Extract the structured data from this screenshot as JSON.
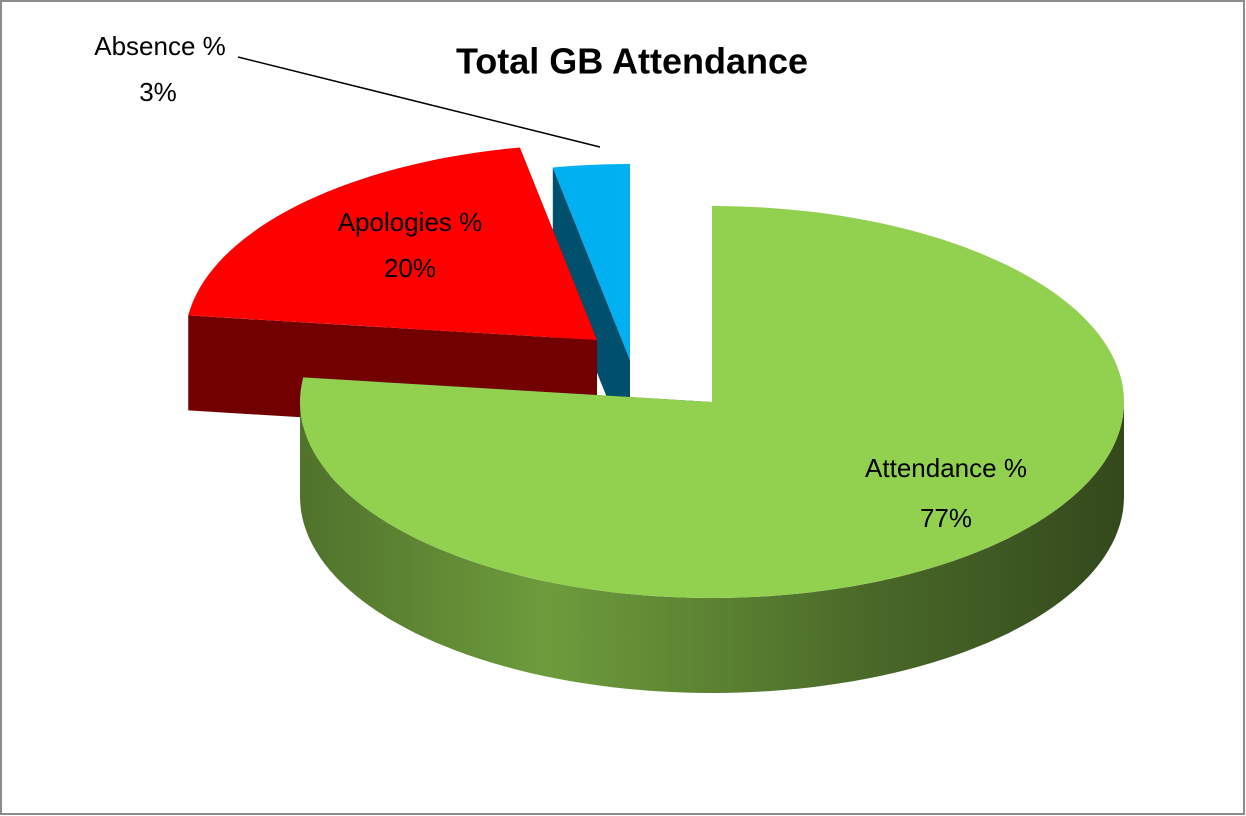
{
  "chart_data": {
    "type": "pie",
    "title": "Total GB Attendance",
    "categories": [
      "Attendance %",
      "Apologies %",
      "Absence %"
    ],
    "values": [
      77,
      20,
      3
    ],
    "value_labels": [
      "77%",
      "20%",
      "3%"
    ],
    "colors": [
      "#92d050",
      "#ff0000",
      "#00b0f0"
    ]
  }
}
